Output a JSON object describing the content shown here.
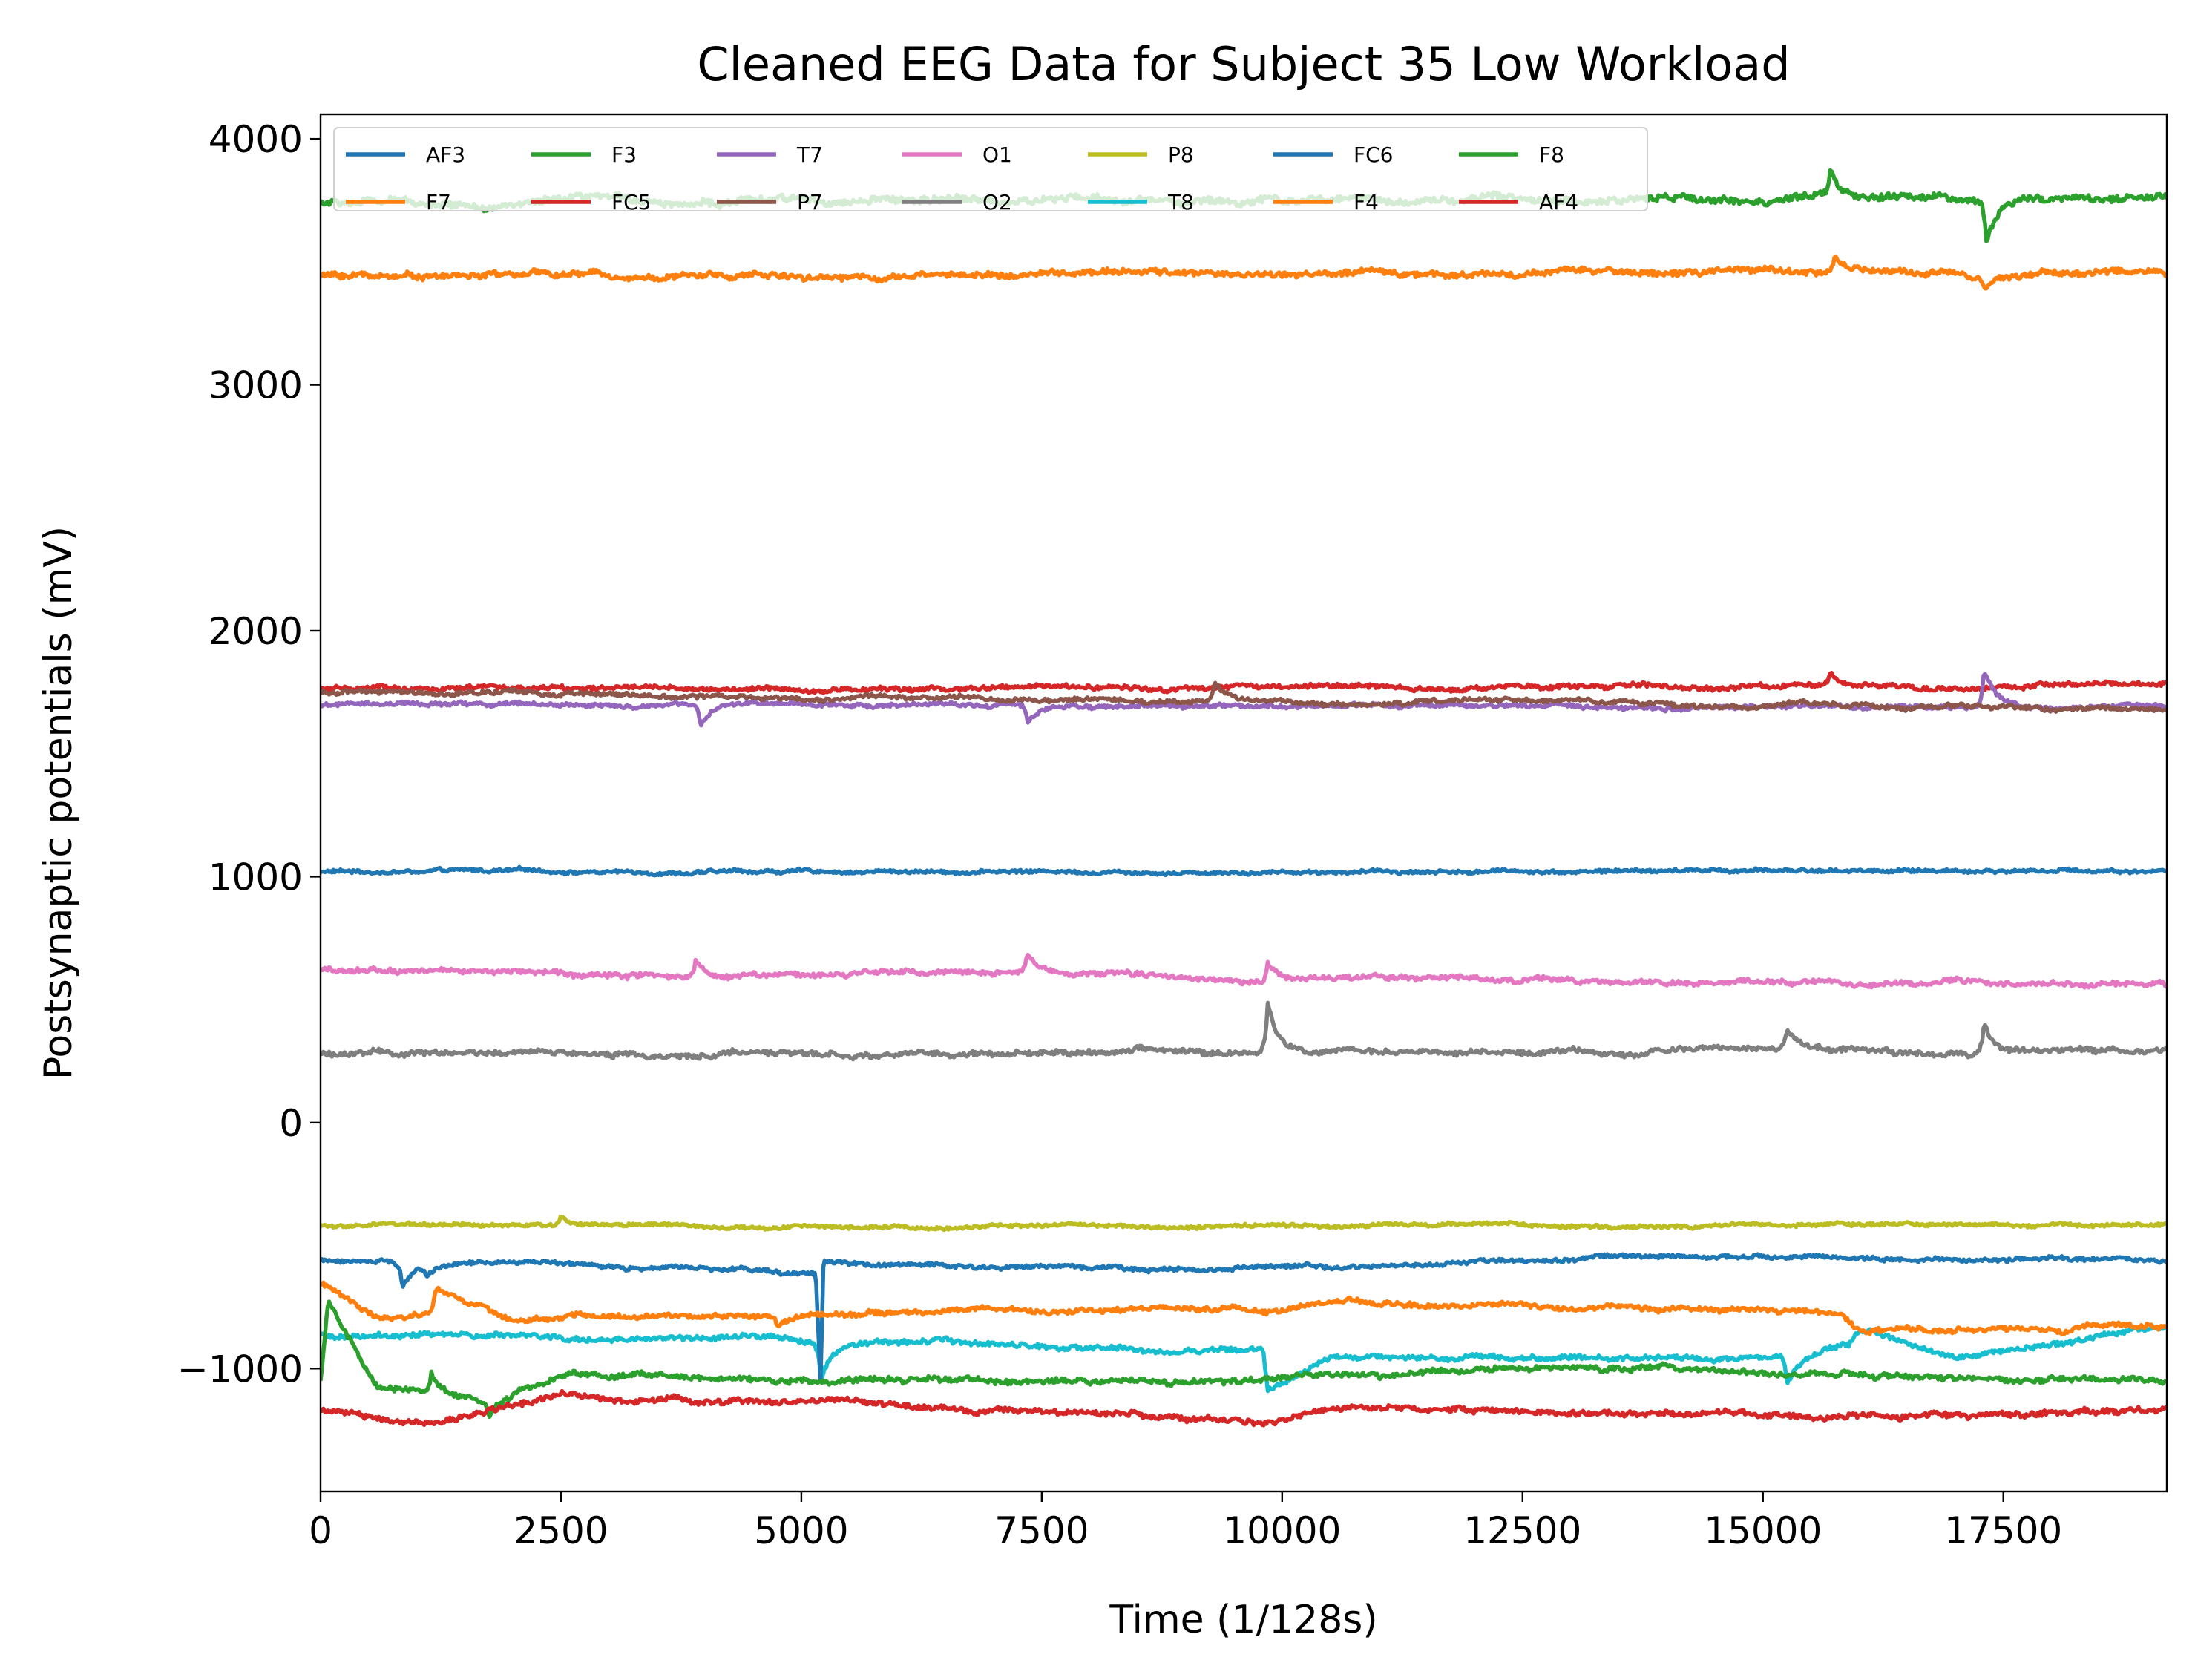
{
  "chart_data": {
    "type": "line",
    "title": "Cleaned EEG Data for Subject 35 Low Workload",
    "xlabel": "Time (1/128s)",
    "ylabel": "Postsynaptic potentials (mV)",
    "xlim": [
      0,
      19200
    ],
    "ylim": [
      -1500,
      4100
    ],
    "xticks": [
      0,
      2500,
      5000,
      7500,
      10000,
      12500,
      15000,
      17500
    ],
    "xtick_labels": [
      "0",
      "2500",
      "5000",
      "7500",
      "10000",
      "12500",
      "15000",
      "17500"
    ],
    "yticks": [
      -1000,
      0,
      1000,
      2000,
      3000,
      4000
    ],
    "ytick_labels": [
      "−1000",
      "0",
      "1000",
      "2000",
      "3000",
      "4000"
    ],
    "grid": false,
    "legend": {
      "placement": "top-left",
      "columns": 7
    },
    "series": [
      {
        "name": "AF3",
        "color": "#1f77b4",
        "baseline": 1025,
        "noise": 12,
        "points": [
          [
            0,
            1020
          ],
          [
            19200,
            1025
          ]
        ],
        "events": []
      },
      {
        "name": "F7",
        "color": "#ff7f0e",
        "baseline": 3465,
        "noise": 22,
        "points": [
          [
            0,
            3445
          ],
          [
            19200,
            3460
          ]
        ],
        "events": [
          [
            15750,
            70
          ],
          [
            17300,
            -60
          ]
        ]
      },
      {
        "name": "F3",
        "color": "#2ca02c",
        "baseline": 3760,
        "noise": 26,
        "points": [
          [
            0,
            3740
          ],
          [
            19200,
            3760
          ]
        ],
        "events": [
          [
            15700,
            90
          ],
          [
            17320,
            -180
          ]
        ]
      },
      {
        "name": "FC5",
        "color": "#d62728",
        "baseline": 1770,
        "noise": 16,
        "points": [
          [
            0,
            1760
          ],
          [
            19200,
            1775
          ]
        ],
        "events": [
          [
            15700,
            50
          ]
        ]
      },
      {
        "name": "T7",
        "color": "#9467bd",
        "baseline": 1715,
        "noise": 14,
        "points": [
          [
            0,
            1700
          ],
          [
            19200,
            1690
          ]
        ],
        "events": [
          [
            3950,
            -90
          ],
          [
            7350,
            -70
          ],
          [
            17300,
            150
          ]
        ]
      },
      {
        "name": "P7",
        "color": "#8c564b",
        "baseline": 1725,
        "noise": 15,
        "points": [
          [
            0,
            1750
          ],
          [
            19200,
            1680
          ]
        ],
        "events": [
          [
            9300,
            80
          ]
        ]
      },
      {
        "name": "O1",
        "color": "#e377c2",
        "baseline": 605,
        "noise": 18,
        "points": [
          [
            0,
            620
          ],
          [
            19200,
            560
          ]
        ],
        "events": [
          [
            3900,
            70
          ],
          [
            7350,
            80
          ],
          [
            9850,
            80
          ]
        ]
      },
      {
        "name": "O2",
        "color": "#7f7f7f",
        "baseline": 300,
        "noise": 20,
        "points": [
          [
            0,
            280
          ],
          [
            19200,
            290
          ]
        ],
        "events": [
          [
            9850,
            200
          ],
          [
            15250,
            90
          ],
          [
            17300,
            120
          ]
        ]
      },
      {
        "name": "P8",
        "color": "#bcbd22",
        "baseline": -440,
        "noise": 12,
        "points": [
          [
            0,
            -420
          ],
          [
            19200,
            -420
          ]
        ],
        "events": [
          [
            2500,
            40
          ]
        ]
      },
      {
        "name": "T8",
        "color": "#17becf",
        "baseline": -920,
        "noise": 18,
        "points": [
          [
            0,
            -860
          ],
          [
            9800,
            -920
          ],
          [
            9850,
            -1090
          ],
          [
            10500,
            -960
          ],
          [
            15000,
            -960
          ],
          [
            15900,
            -900
          ],
          [
            16000,
            -840
          ],
          [
            17000,
            -960
          ],
          [
            19200,
            -820
          ]
        ],
        "events": [
          [
            5200,
            -150
          ],
          [
            15250,
            -120
          ]
        ]
      },
      {
        "name": "FC6",
        "color": "#1f77b4",
        "baseline": -585,
        "noise": 14,
        "points": [
          [
            0,
            -560
          ],
          [
            5150,
            -610
          ],
          [
            5200,
            -1050
          ],
          [
            5230,
            -560
          ],
          [
            9000,
            -600
          ],
          [
            13500,
            -550
          ],
          [
            19200,
            -560
          ]
        ],
        "events": [
          [
            850,
            -100
          ],
          [
            1100,
            -40
          ]
        ]
      },
      {
        "name": "F4",
        "color": "#ff7f0e",
        "baseline": -790,
        "noise": 18,
        "points": [
          [
            0,
            -650
          ],
          [
            600,
            -800
          ],
          [
            1150,
            -780
          ],
          [
            1200,
            -680
          ],
          [
            2000,
            -800
          ],
          [
            12500,
            -740
          ],
          [
            15800,
            -780
          ],
          [
            16000,
            -850
          ],
          [
            19200,
            -830
          ]
        ],
        "events": [
          [
            4750,
            -60
          ]
        ]
      },
      {
        "name": "F8",
        "color": "#2ca02c",
        "baseline": -1050,
        "noise": 20,
        "points": [
          [
            0,
            -1050
          ],
          [
            80,
            -720
          ],
          [
            600,
            -1080
          ],
          [
            1700,
            -1140
          ],
          [
            2600,
            -1010
          ],
          [
            5100,
            -1050
          ],
          [
            5200,
            -1050
          ],
          [
            9800,
            -1060
          ],
          [
            12500,
            -990
          ],
          [
            19200,
            -1050
          ]
        ],
        "events": [
          [
            1150,
            80
          ],
          [
            1750,
            -60
          ]
        ]
      },
      {
        "name": "AF4",
        "color": "#d62728",
        "baseline": -1150,
        "noise": 20,
        "points": [
          [
            0,
            -1170
          ],
          [
            1200,
            -1230
          ],
          [
            2500,
            -1120
          ],
          [
            5000,
            -1130
          ],
          [
            9900,
            -1220
          ],
          [
            10500,
            -1150
          ],
          [
            15800,
            -1200
          ],
          [
            19200,
            -1170
          ]
        ],
        "events": []
      }
    ]
  }
}
